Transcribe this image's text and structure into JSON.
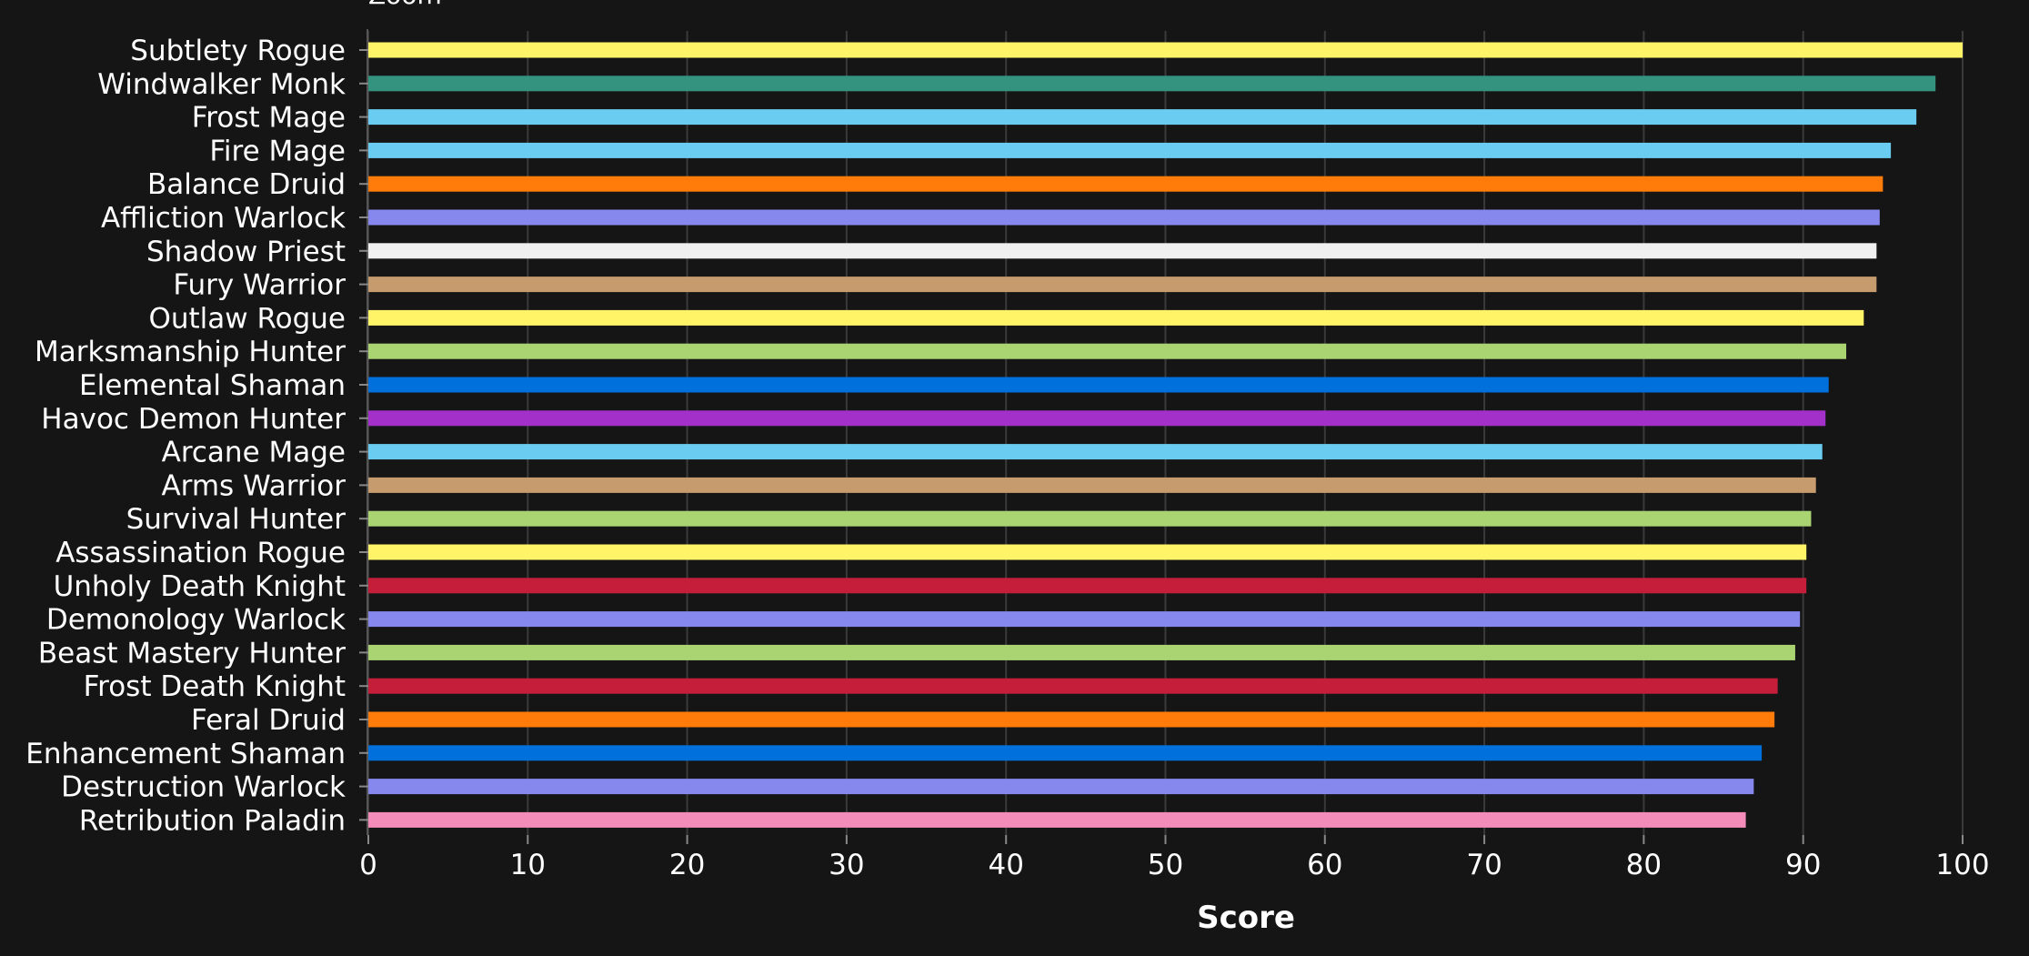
{
  "chart_data": {
    "type": "bar",
    "orientation": "horizontal",
    "top_text": "Zoom",
    "xlabel": "Score",
    "ylabel": "",
    "xlim": [
      0,
      100
    ],
    "xticks": [
      "0",
      "10",
      "20",
      "30",
      "40",
      "50",
      "60",
      "70",
      "80",
      "90",
      "100"
    ],
    "grid": "vertical",
    "categories": [
      "Subtlety Rogue",
      "Windwalker Monk",
      "Frost Mage",
      "Fire Mage",
      "Balance Druid",
      "Affliction Warlock",
      "Shadow Priest",
      "Fury Warrior",
      "Outlaw Rogue",
      "Marksmanship Hunter",
      "Elemental Shaman",
      "Havoc Demon Hunter",
      "Arcane Mage",
      "Arms Warrior",
      "Survival Hunter",
      "Assassination Rogue",
      "Unholy Death Knight",
      "Demonology Warlock",
      "Beast Mastery Hunter",
      "Frost Death Knight",
      "Feral Druid",
      "Enhancement Shaman",
      "Destruction Warlock",
      "Retribution Paladin"
    ],
    "values": [
      100,
      98.3,
      97.1,
      95.5,
      95.0,
      94.8,
      94.6,
      94.6,
      93.8,
      92.7,
      91.6,
      91.4,
      91.2,
      90.8,
      90.5,
      90.2,
      90.2,
      89.8,
      89.5,
      88.4,
      88.2,
      87.4,
      86.9,
      86.4
    ],
    "colors": [
      "#FFF468",
      "#33937F",
      "#69CCF0",
      "#69CCF0",
      "#FF7C0A",
      "#8788EE",
      "#F0F0F0",
      "#C69B6D",
      "#FFF468",
      "#AAD372",
      "#0070DD",
      "#A330C9",
      "#69CCF0",
      "#C69B6D",
      "#AAD372",
      "#FFF468",
      "#C41E3A",
      "#8788EE",
      "#AAD372",
      "#C41E3A",
      "#FF7C0A",
      "#0070DD",
      "#8788EE",
      "#F48CBA"
    ],
    "background": "#151515",
    "grid_color": "#3a3a3a"
  }
}
